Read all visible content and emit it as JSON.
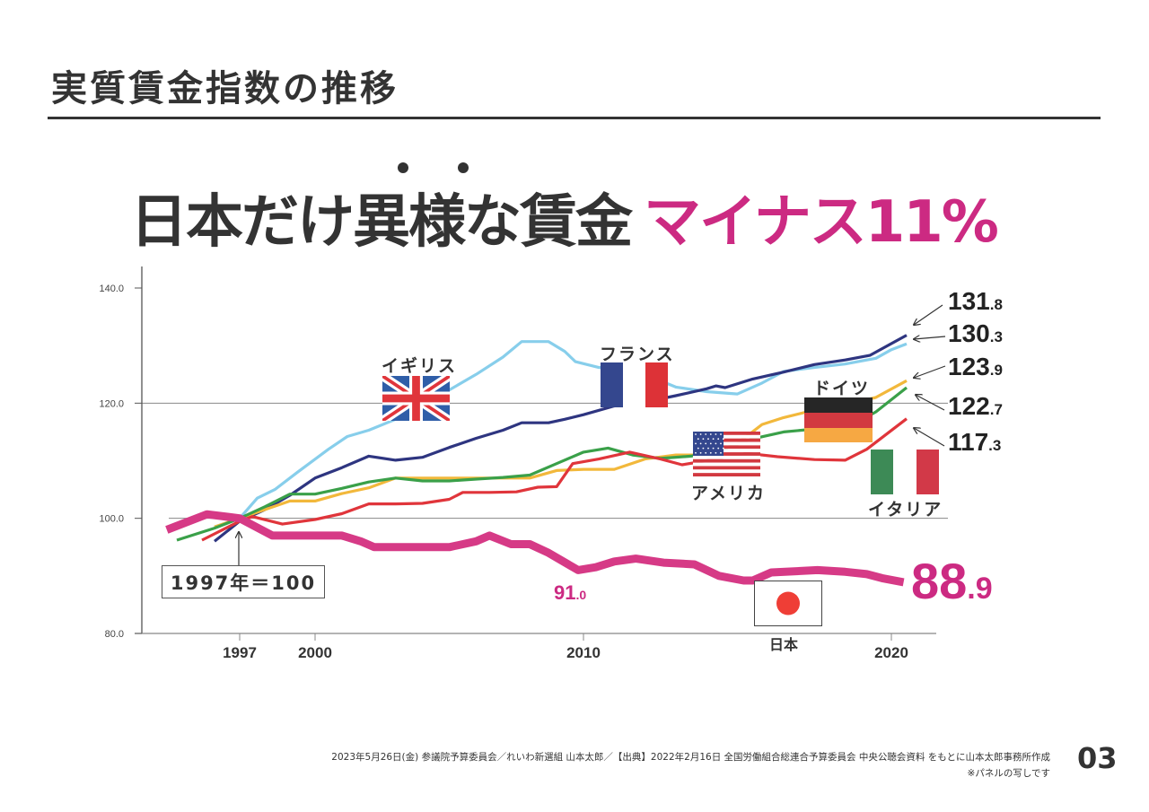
{
  "page": {
    "title": "実質賃金指数の推移",
    "headline_main": "日本だけ異様な賃金",
    "headline_accent": "マイナス11%",
    "base_note": "1997年＝100",
    "footer_line1": "2023年5月26日(金) 参議院予算委員会／れいわ新選組 山本太郎／【出典】2022年2月16日 全国労働組合総連合予算委員会 中央公聴会資料 をもとに山本太郎事務所作成",
    "footer_line2": "※パネルの写しです",
    "page_number": "03"
  },
  "colors": {
    "japan": "#d63a86",
    "accent": "#cc2a82",
    "uk": "#87ceeb",
    "france": "#2e3580",
    "usa": "#f2b83b",
    "germany": "#3aa049",
    "italy": "#e0353b",
    "grid": "#888888",
    "text": "#333333"
  },
  "chart_data": {
    "type": "line",
    "title": "実質賃金指数の推移",
    "subtitle": "1997年＝100",
    "xlabel": "",
    "ylabel": "",
    "ylim": [
      80,
      140
    ],
    "yticks": [
      "80.0",
      "100.0",
      "120.0",
      "140.0"
    ],
    "ytick_values": [
      80,
      100,
      120,
      140
    ],
    "xticks": [
      "1997",
      "2000",
      "2010",
      "2020"
    ],
    "xtick_values": [
      1997,
      2000,
      2010,
      2020
    ],
    "grid": "horizontal",
    "series": [
      {
        "key": "uk",
        "name": "イギリス",
        "end_label": "130",
        "end_label_dec": ".3",
        "points": [
          [
            1996,
            98.5
          ],
          [
            1997,
            100
          ],
          [
            1997.7,
            103.5
          ],
          [
            1998.4,
            105
          ],
          [
            1999.3,
            108
          ],
          [
            2000.5,
            112
          ],
          [
            2001.2,
            114.2
          ],
          [
            2002,
            115.3
          ],
          [
            2003,
            117.2
          ],
          [
            2004,
            119.2
          ],
          [
            2005,
            122.3
          ],
          [
            2006,
            125
          ],
          [
            2007,
            128
          ],
          [
            2007.7,
            130.7
          ],
          [
            2008.7,
            130.7
          ],
          [
            2009.3,
            129
          ],
          [
            2009.7,
            127.2
          ],
          [
            2010.5,
            126.2
          ],
          [
            2011,
            126.2
          ],
          [
            2012,
            125
          ],
          [
            2013,
            122.8
          ],
          [
            2014,
            122
          ],
          [
            2015,
            121.6
          ],
          [
            2015.8,
            123.5
          ],
          [
            2016.5,
            125.5
          ],
          [
            2017.5,
            126.2
          ],
          [
            2018.5,
            126.8
          ],
          [
            2019.5,
            127.8
          ],
          [
            2020,
            129.3
          ],
          [
            2020.5,
            130.3
          ]
        ]
      },
      {
        "key": "france",
        "name": "フランス",
        "end_label": "131",
        "end_label_dec": ".8",
        "points": [
          [
            1996,
            96
          ],
          [
            1997,
            99.5
          ],
          [
            1998,
            101.5
          ],
          [
            1999,
            104
          ],
          [
            2000,
            107
          ],
          [
            2001,
            108.8
          ],
          [
            2002,
            110.8
          ],
          [
            2003,
            110.1
          ],
          [
            2004,
            110.6
          ],
          [
            2005,
            112.3
          ],
          [
            2006,
            113.9
          ],
          [
            2007,
            115.3
          ],
          [
            2007.7,
            116.6
          ],
          [
            2008.7,
            116.6
          ],
          [
            2009.3,
            117.2
          ],
          [
            2010,
            118
          ],
          [
            2011,
            119.5
          ],
          [
            2012,
            120.2
          ],
          [
            2013,
            121.3
          ],
          [
            2014,
            122.5
          ],
          [
            2014.3,
            123
          ],
          [
            2014.6,
            122.7
          ],
          [
            2015.5,
            124.2
          ],
          [
            2016.5,
            125.4
          ],
          [
            2017.5,
            126.7
          ],
          [
            2018.5,
            127.5
          ],
          [
            2019.3,
            128.3
          ],
          [
            2020.5,
            131.8
          ]
        ]
      },
      {
        "key": "usa",
        "name": "アメリカ",
        "end_label": "123",
        "end_label_dec": ".9",
        "points": [
          [
            1996,
            98.5
          ],
          [
            1997,
            100
          ],
          [
            1998,
            101.5
          ],
          [
            1999,
            103
          ],
          [
            2000,
            103
          ],
          [
            2001,
            104.3
          ],
          [
            2002,
            105.3
          ],
          [
            2003,
            107
          ],
          [
            2004,
            107
          ],
          [
            2005,
            107
          ],
          [
            2006,
            107
          ],
          [
            2007,
            107
          ],
          [
            2008,
            107
          ],
          [
            2009,
            108.3
          ],
          [
            2010,
            108.5
          ],
          [
            2011,
            108.5
          ],
          [
            2012,
            110.3
          ],
          [
            2013,
            111
          ],
          [
            2014,
            111
          ],
          [
            2015,
            113
          ],
          [
            2015.8,
            116.3
          ],
          [
            2016.5,
            117.5
          ],
          [
            2017.5,
            118.8
          ],
          [
            2018.5,
            119.7
          ],
          [
            2019.5,
            121
          ],
          [
            2020.5,
            123.9
          ]
        ]
      },
      {
        "key": "germany",
        "name": "ドイツ",
        "end_label": "122",
        "end_label_dec": ".7",
        "points": [
          [
            1994.5,
            96.2
          ],
          [
            1996,
            98.3
          ],
          [
            1997,
            100
          ],
          [
            1998,
            102
          ],
          [
            1999,
            104.2
          ],
          [
            2000,
            104.2
          ],
          [
            2001,
            105.2
          ],
          [
            2002,
            106.3
          ],
          [
            2003,
            107
          ],
          [
            2004,
            106.5
          ],
          [
            2005,
            106.5
          ],
          [
            2006,
            106.8
          ],
          [
            2007,
            107.1
          ],
          [
            2008,
            107.5
          ],
          [
            2009,
            109.5
          ],
          [
            2010,
            111.5
          ],
          [
            2010.8,
            112.2
          ],
          [
            2011.6,
            111
          ],
          [
            2012.5,
            110.4
          ],
          [
            2013.5,
            110.8
          ],
          [
            2014.5,
            112
          ],
          [
            2015.5,
            113.8
          ],
          [
            2016.5,
            115
          ],
          [
            2017.5,
            115.5
          ],
          [
            2018.5,
            115.5
          ],
          [
            2019.5,
            118.5
          ],
          [
            2020.5,
            122.7
          ]
        ]
      },
      {
        "key": "italy",
        "name": "イタリア",
        "end_label": "117",
        "end_label_dec": ".3",
        "points": [
          [
            1995.5,
            96.2
          ],
          [
            1997,
            99.5
          ],
          [
            1997.5,
            100.3
          ],
          [
            1998.7,
            99
          ],
          [
            2000,
            99.8
          ],
          [
            2001,
            100.8
          ],
          [
            2002,
            102.5
          ],
          [
            2003,
            102.5
          ],
          [
            2004,
            102.6
          ],
          [
            2005,
            103.3
          ],
          [
            2005.5,
            104.5
          ],
          [
            2006.5,
            104.5
          ],
          [
            2007.5,
            104.6
          ],
          [
            2008.3,
            105.4
          ],
          [
            2009,
            105.5
          ],
          [
            2009.6,
            109.5
          ],
          [
            2010.5,
            110.3
          ],
          [
            2011.5,
            111.5
          ],
          [
            2012.5,
            110.3
          ],
          [
            2013.2,
            109.3
          ],
          [
            2014,
            110
          ],
          [
            2015.3,
            111.3
          ],
          [
            2016.3,
            110.7
          ],
          [
            2017.5,
            110.2
          ],
          [
            2018.5,
            110.1
          ],
          [
            2019.2,
            112
          ],
          [
            2020.5,
            117.3
          ]
        ]
      },
      {
        "key": "japan",
        "name": "日本",
        "end_label": "88",
        "end_label_dec": ".9",
        "min_label": "91",
        "min_label_dec": ".0",
        "points": [
          [
            1994.1,
            98
          ],
          [
            1995.7,
            100.7
          ],
          [
            1997,
            100
          ],
          [
            1998.3,
            97
          ],
          [
            2001,
            97
          ],
          [
            2001.7,
            96
          ],
          [
            2002.2,
            95
          ],
          [
            2005,
            95
          ],
          [
            2006,
            96
          ],
          [
            2006.5,
            97
          ],
          [
            2007.3,
            95.5
          ],
          [
            2008,
            95.5
          ],
          [
            2008.7,
            94
          ],
          [
            2009.8,
            91
          ],
          [
            2010.4,
            91.5
          ],
          [
            2011,
            92.5
          ],
          [
            2011.7,
            93
          ],
          [
            2012.6,
            92.3
          ],
          [
            2013.6,
            92
          ],
          [
            2014.4,
            90
          ],
          [
            2015.2,
            89.2
          ],
          [
            2015.5,
            89.2
          ],
          [
            2016.1,
            90.6
          ],
          [
            2017.6,
            91
          ],
          [
            2018.5,
            90.7
          ],
          [
            2019.2,
            90.3
          ],
          [
            2019.7,
            89.6
          ],
          [
            2020.4,
            88.9
          ]
        ]
      }
    ]
  }
}
